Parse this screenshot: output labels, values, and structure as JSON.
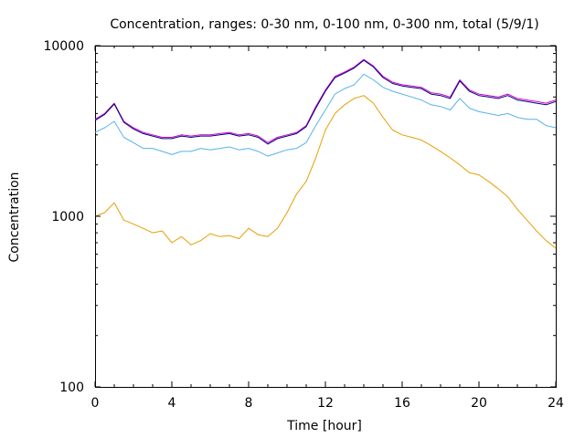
{
  "chart_data": {
    "type": "line",
    "title": "Concentration, ranges: 0-30 nm, 0-100 nm, 0-300 nm, total (5/9/1)",
    "xlabel": "Time [hour]",
    "ylabel": "Concentration",
    "xlim": [
      0,
      24
    ],
    "ylim": [
      100,
      10000
    ],
    "yscale": "log",
    "grid": false,
    "legend": "none",
    "x_ticks": [
      "0",
      "4",
      "8",
      "12",
      "16",
      "20",
      "24"
    ],
    "y_ticks": [
      "100",
      "1000",
      "10000"
    ],
    "x": [
      0,
      0.5,
      1,
      1.5,
      2,
      2.5,
      3,
      3.5,
      4,
      4.5,
      5,
      5.5,
      6,
      6.5,
      7,
      7.5,
      8,
      8.5,
      9,
      9.5,
      10,
      10.5,
      11,
      11.5,
      12,
      12.5,
      13,
      13.5,
      14,
      14.5,
      15,
      15.5,
      16,
      16.5,
      17,
      17.5,
      18,
      18.5,
      19,
      19.5,
      20,
      20.5,
      21,
      21.5,
      22,
      22.5,
      23,
      23.5,
      24
    ],
    "series": [
      {
        "color": "#e69f00",
        "values": [
          1000,
          1050,
          1200,
          950,
          900,
          850,
          800,
          820,
          700,
          760,
          680,
          720,
          790,
          760,
          770,
          740,
          850,
          780,
          760,
          850,
          1050,
          1350,
          1600,
          2200,
          3200,
          4000,
          4500,
          4900,
          5100,
          4600,
          3800,
          3200,
          3000,
          2900,
          2800,
          2600,
          2400,
          2200,
          2000,
          1800,
          1750,
          1600,
          1450,
          1300,
          1100,
          950,
          820,
          720,
          650
        ]
      },
      {
        "color": "#56b4e9",
        "values": [
          3100,
          3300,
          3600,
          2900,
          2700,
          2500,
          2500,
          2400,
          2300,
          2400,
          2400,
          2500,
          2450,
          2500,
          2550,
          2450,
          2500,
          2400,
          2250,
          2350,
          2450,
          2500,
          2700,
          3400,
          4200,
          5200,
          5600,
          5900,
          6800,
          6300,
          5700,
          5400,
          5200,
          5000,
          4800,
          4500,
          4400,
          4200,
          4900,
          4300,
          4100,
          4000,
          3900,
          4000,
          3800,
          3700,
          3700,
          3400,
          3300
        ]
      },
      {
        "color": "#cc00cc",
        "values": [
          3700,
          4000,
          4600,
          3600,
          3300,
          3100,
          3000,
          2900,
          2900,
          3000,
          2950,
          3000,
          3000,
          3050,
          3100,
          3000,
          3050,
          2950,
          2700,
          2900,
          3000,
          3100,
          3400,
          4400,
          5500,
          6600,
          7000,
          7500,
          8300,
          7600,
          6600,
          6100,
          5900,
          5800,
          5700,
          5300,
          5200,
          5000,
          6300,
          5500,
          5200,
          5100,
          5000,
          5200,
          4900,
          4800,
          4700,
          4600,
          4800
        ]
      },
      {
        "color": "#00007f",
        "values": [
          3650,
          3950,
          4550,
          3550,
          3250,
          3050,
          2950,
          2850,
          2850,
          2950,
          2900,
          2950,
          2950,
          3000,
          3050,
          2950,
          3000,
          2900,
          2650,
          2850,
          2950,
          3050,
          3350,
          4300,
          5400,
          6500,
          6900,
          7400,
          8200,
          7500,
          6500,
          6000,
          5800,
          5700,
          5600,
          5200,
          5100,
          4900,
          6200,
          5400,
          5100,
          5000,
          4900,
          5100,
          4800,
          4700,
          4600,
          4500,
          4700
        ]
      }
    ]
  }
}
